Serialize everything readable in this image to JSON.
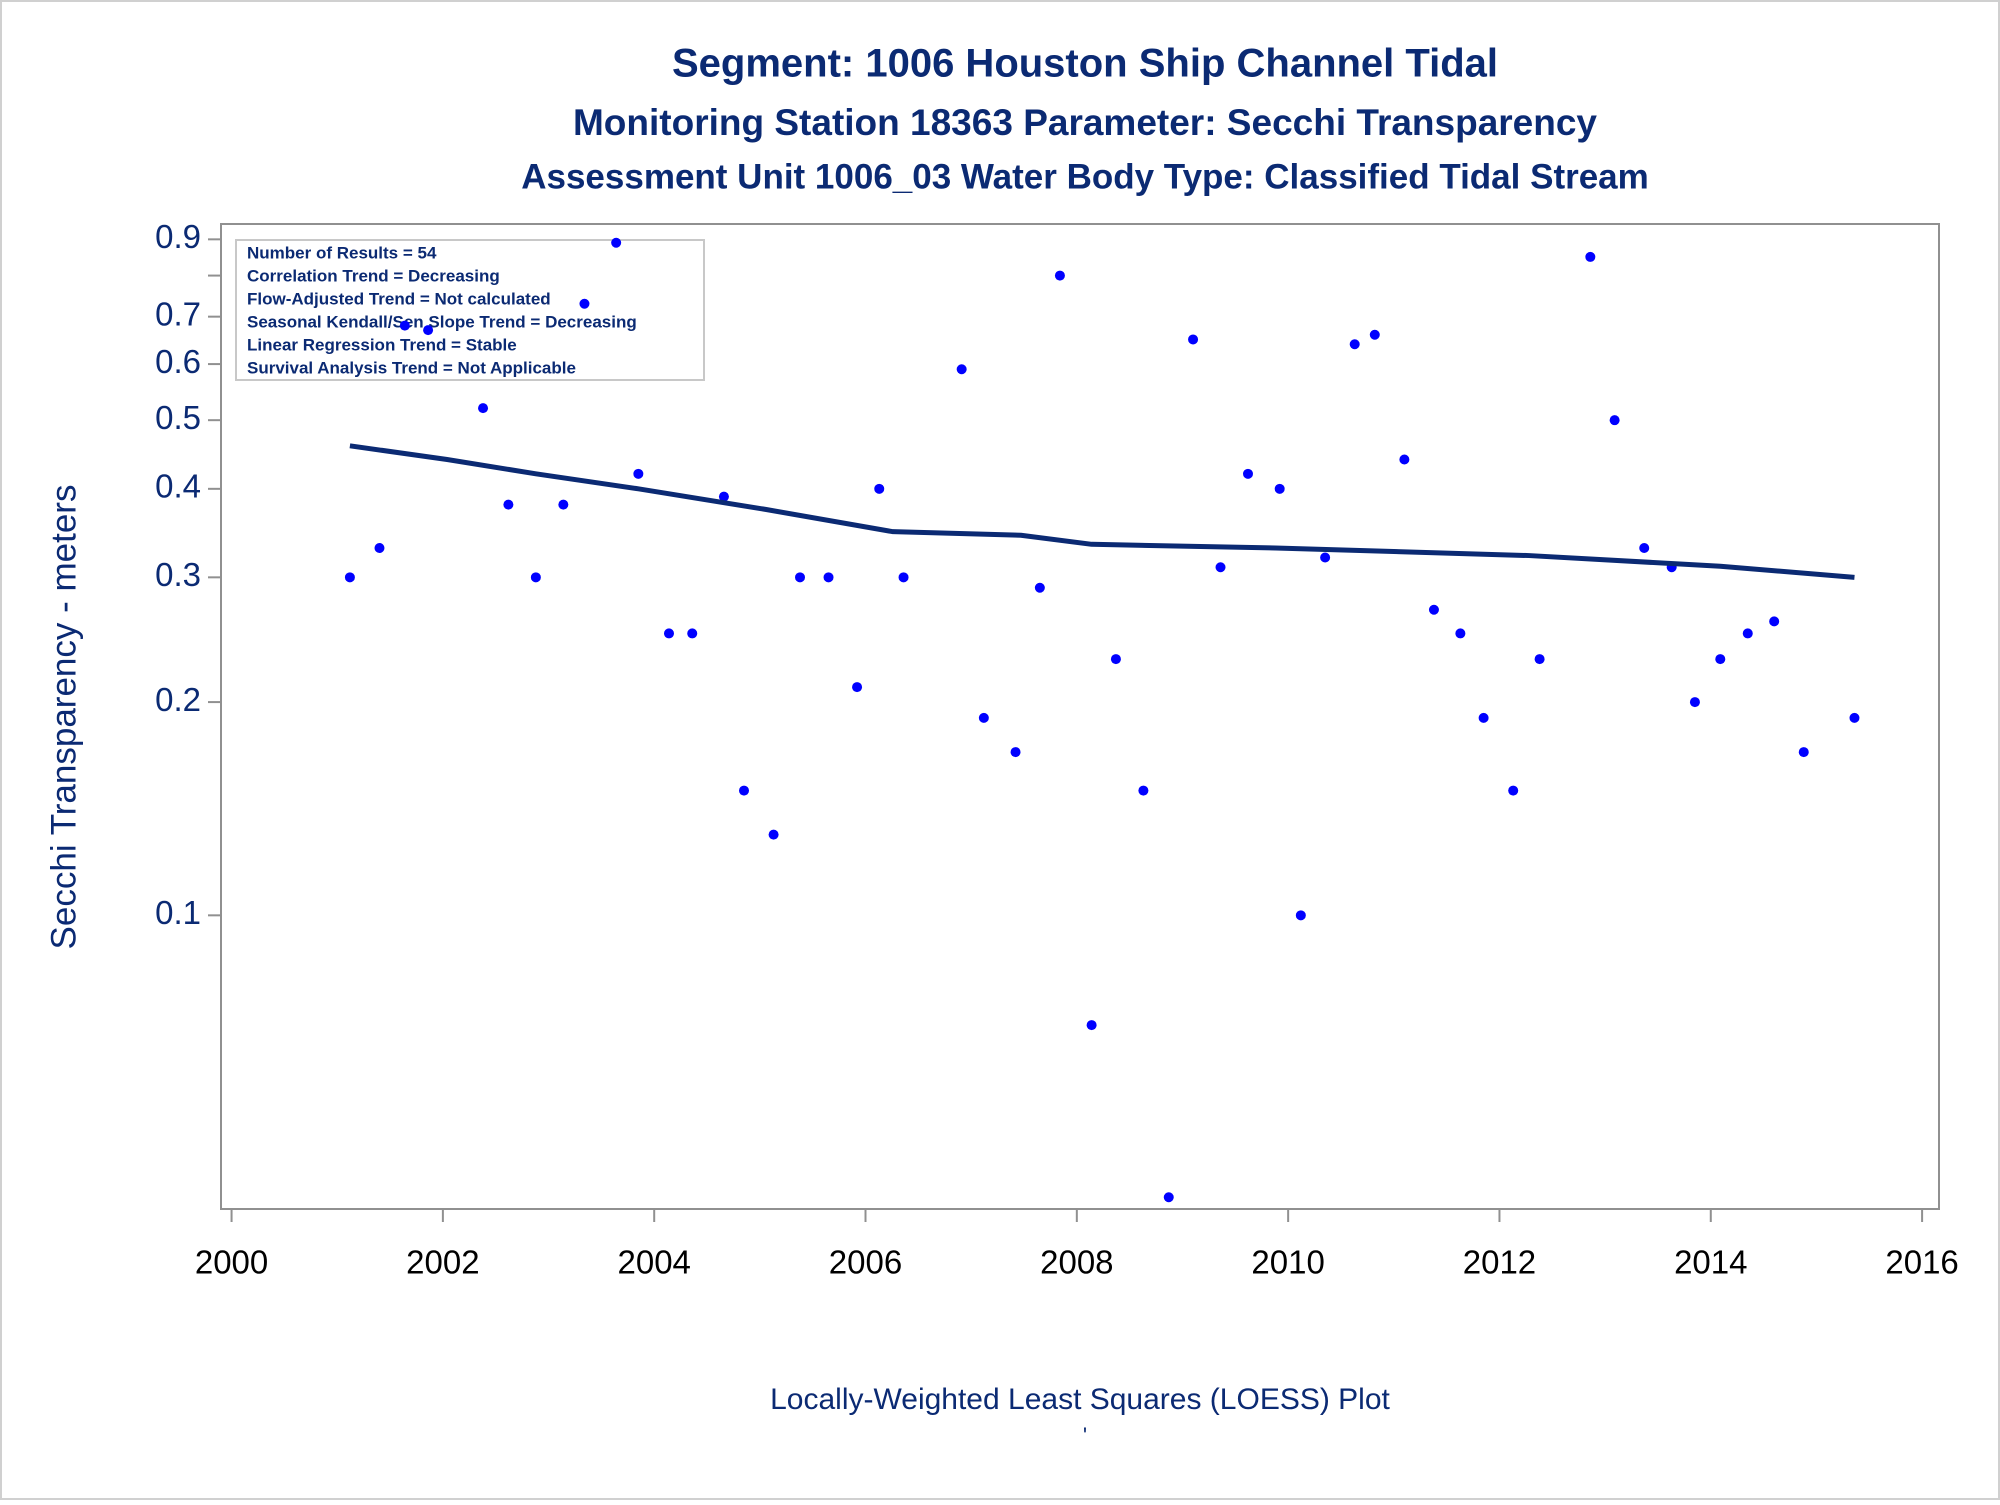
{
  "chart_data": {
    "type": "scatter",
    "title": "Segment: 1006  Houston Ship Channel Tidal",
    "subtitle": "Monitoring Station 18363 Parameter: Secchi Transparency",
    "subtitle2": "Assessment Unit 1006_03   Water Body Type: Classified Tidal Stream",
    "ylabel": "Secchi Transparency - meters",
    "xlabel": "Locally-Weighted Least Squares (LOESS) Plot",
    "footnote": "'",
    "annotations": [
      "Number of Results = 54",
      "Correlation Trend = Decreasing",
      "Flow-Adjusted Trend = Not calculated",
      "Seasonal Kendall/Sen Slope Trend = Decreasing",
      "Linear Regression Trend = Stable",
      "Survival Analysis Trend = Not Applicable"
    ],
    "color": "#0000ff",
    "x": [
      2001.12,
      2001.4,
      2001.64,
      2001.86,
      2002.38,
      2002.62,
      2002.88,
      2003.14,
      2003.34,
      2003.64,
      2003.85,
      2004.14,
      2004.36,
      2004.66,
      2004.85,
      2005.13,
      2005.38,
      2005.65,
      2005.92,
      2006.13,
      2006.36,
      2006.91,
      2007.12,
      2007.42,
      2007.65,
      2007.84,
      2008.14,
      2008.37,
      2008.63,
      2008.87,
      2009.1,
      2009.36,
      2009.62,
      2009.92,
      2010.12,
      2010.35,
      2010.63,
      2010.82,
      2011.1,
      2011.38,
      2011.63,
      2011.85,
      2012.13,
      2012.38,
      2012.86,
      2013.09,
      2013.37,
      2013.63,
      2013.85,
      2014.09,
      2014.35,
      2014.6,
      2014.88,
      2015.36
    ],
    "values": [
      0.3,
      0.33,
      0.68,
      0.67,
      0.52,
      0.38,
      0.3,
      0.38,
      0.73,
      0.89,
      0.42,
      0.25,
      0.25,
      0.39,
      0.15,
      0.13,
      0.3,
      0.3,
      0.21,
      0.4,
      0.3,
      0.59,
      0.19,
      0.17,
      0.29,
      0.8,
      0.07,
      0.23,
      0.15,
      0.04,
      0.65,
      0.31,
      0.42,
      0.4,
      0.1,
      0.32,
      0.64,
      0.66,
      0.44,
      0.27,
      0.25,
      0.19,
      0.15,
      0.23,
      0.85,
      0.5,
      0.33,
      0.31,
      0.2,
      0.23,
      0.25,
      0.26,
      0.17,
      0.19
    ],
    "loess": {
      "color": "#0b2a73",
      "x": [
        2001.12,
        2002.04,
        2002.88,
        2003.85,
        2005.06,
        2006.26,
        2007.47,
        2008.14,
        2009.88,
        2012.28,
        2014.09,
        2015.36
      ],
      "values": [
        0.46,
        0.44,
        0.42,
        0.4,
        0.374,
        0.348,
        0.344,
        0.334,
        0.33,
        0.322,
        0.311,
        0.3
      ]
    },
    "ylog": true,
    "xlim": [
      1999.9,
      2016.16
    ],
    "ylim": [
      0.0385,
      0.946
    ],
    "xticks": [
      2000,
      2002,
      2004,
      2006,
      2008,
      2010,
      2012,
      2014,
      2016
    ],
    "yticks": [
      0.1,
      0.2,
      0.3,
      0.4,
      0.5,
      0.6,
      0.7,
      {
        "value": 0.8,
        "label": null
      },
      0.9
    ]
  }
}
